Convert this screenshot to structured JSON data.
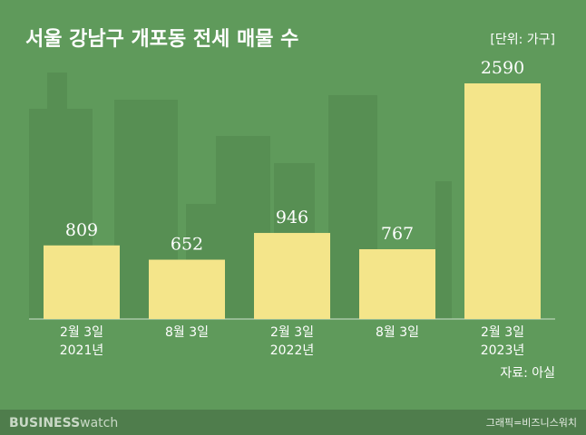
{
  "chart_data": {
    "type": "bar",
    "title": "서울 강남구 개포동 전세 매물 수",
    "unit": "[단위: 가구]",
    "categories": [
      [
        "2월 3일",
        "2021년"
      ],
      [
        "8월 3일"
      ],
      [
        "2월 3일",
        "2022년"
      ],
      [
        "8월 3일"
      ],
      [
        "2월 3일",
        "2023년"
      ]
    ],
    "values": [
      809,
      652,
      946,
      767,
      2590
    ],
    "color": "#f4e58a",
    "source": "자료: 아실",
    "brand": {
      "bold": "BUSINESS",
      "light": "watch"
    },
    "credit": "그래픽=비즈니스워치"
  }
}
